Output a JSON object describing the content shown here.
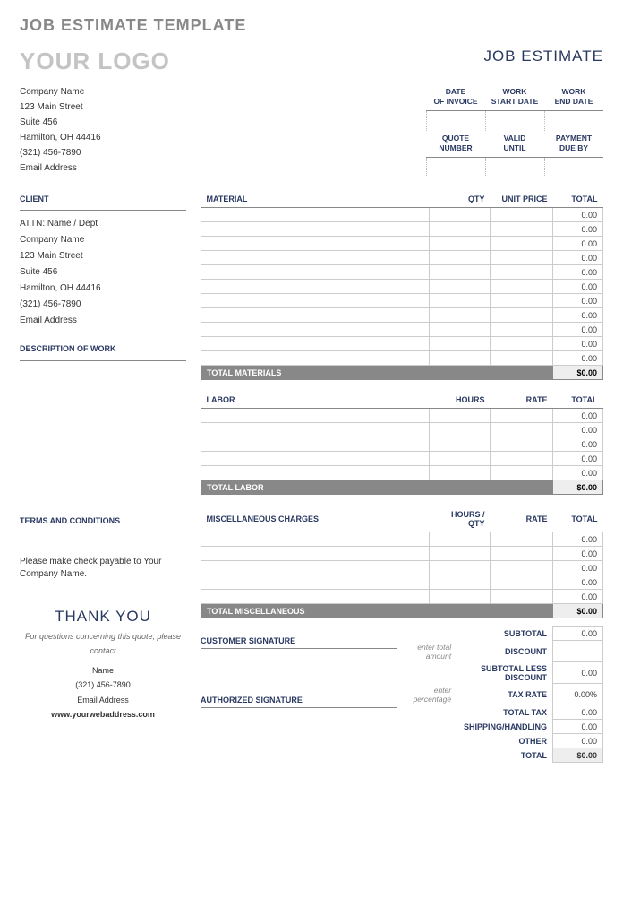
{
  "page_title": "JOB ESTIMATE TEMPLATE",
  "logo_placeholder": "YOUR LOGO",
  "doc_type": "JOB ESTIMATE",
  "company": {
    "name": "Company Name",
    "street": "123 Main Street",
    "suite": "Suite 456",
    "city": "Hamilton, OH  44416",
    "phone": "(321) 456-7890",
    "email": "Email Address"
  },
  "date_headers": {
    "r1c1a": "DATE",
    "r1c1b": "OF INVOICE",
    "r1c2a": "WORK",
    "r1c2b": "START DATE",
    "r1c3a": "WORK",
    "r1c3b": "END DATE",
    "r2c1a": "QUOTE",
    "r2c1b": "NUMBER",
    "r2c2a": "VALID",
    "r2c2b": "UNTIL",
    "r2c3a": "PAYMENT",
    "r2c3b": "DUE BY"
  },
  "labels": {
    "client": "CLIENT",
    "description": "DESCRIPTION OF WORK",
    "terms": "TERMS AND CONDITIONS",
    "material": "MATERIAL",
    "qty": "QTY",
    "unit_price": "UNIT PRICE",
    "total": "TOTAL",
    "total_materials": "TOTAL MATERIALS",
    "labor": "LABOR",
    "hours": "HOURS",
    "rate": "RATE",
    "total_labor": "TOTAL LABOR",
    "misc": "MISCELLANEOUS CHARGES",
    "hours_qty": "HOURS / QTY",
    "total_misc": "TOTAL MISCELLANEOUS",
    "customer_sig": "CUSTOMER SIGNATURE",
    "authorized_sig": "AUTHORIZED SIGNATURE",
    "subtotal": "SUBTOTAL",
    "discount": "DISCOUNT",
    "subtotal_less": "SUBTOTAL LESS DISCOUNT",
    "tax_rate": "TAX RATE",
    "total_tax": "TOTAL TAX",
    "shipping": "SHIPPING/HANDLING",
    "other": "OTHER",
    "grand_total": "TOTAL",
    "enter_total": "enter total amount",
    "enter_pct": "enter percentage"
  },
  "client": {
    "attn": "ATTN: Name / Dept",
    "company": "Company Name",
    "street": "123 Main Street",
    "suite": "Suite 456",
    "city": "Hamilton, OH  44416",
    "phone": "(321) 456-7890",
    "email": "Email Address"
  },
  "terms_text": "Please make check payable to Your Company Name.",
  "thank_you": "THANK YOU",
  "contact": {
    "note": "For questions concerning this quote, please contact",
    "name": "Name",
    "phone": "(321) 456-7890",
    "email": "Email Address",
    "web": "www.yourwebaddress.com"
  },
  "values": {
    "zero": "0.00",
    "zero_b": "$0.00",
    "tax_pct": "0.00%"
  },
  "material_rows": 11,
  "labor_rows": 5,
  "misc_rows": 5,
  "colors": {
    "heading": "#2a3962",
    "subtitle_gray": "#888888",
    "logo_gray": "#c4c4c4",
    "border": "#cccccc",
    "subtotal_bg": "#888888",
    "amount_bg": "#eeeeee"
  }
}
